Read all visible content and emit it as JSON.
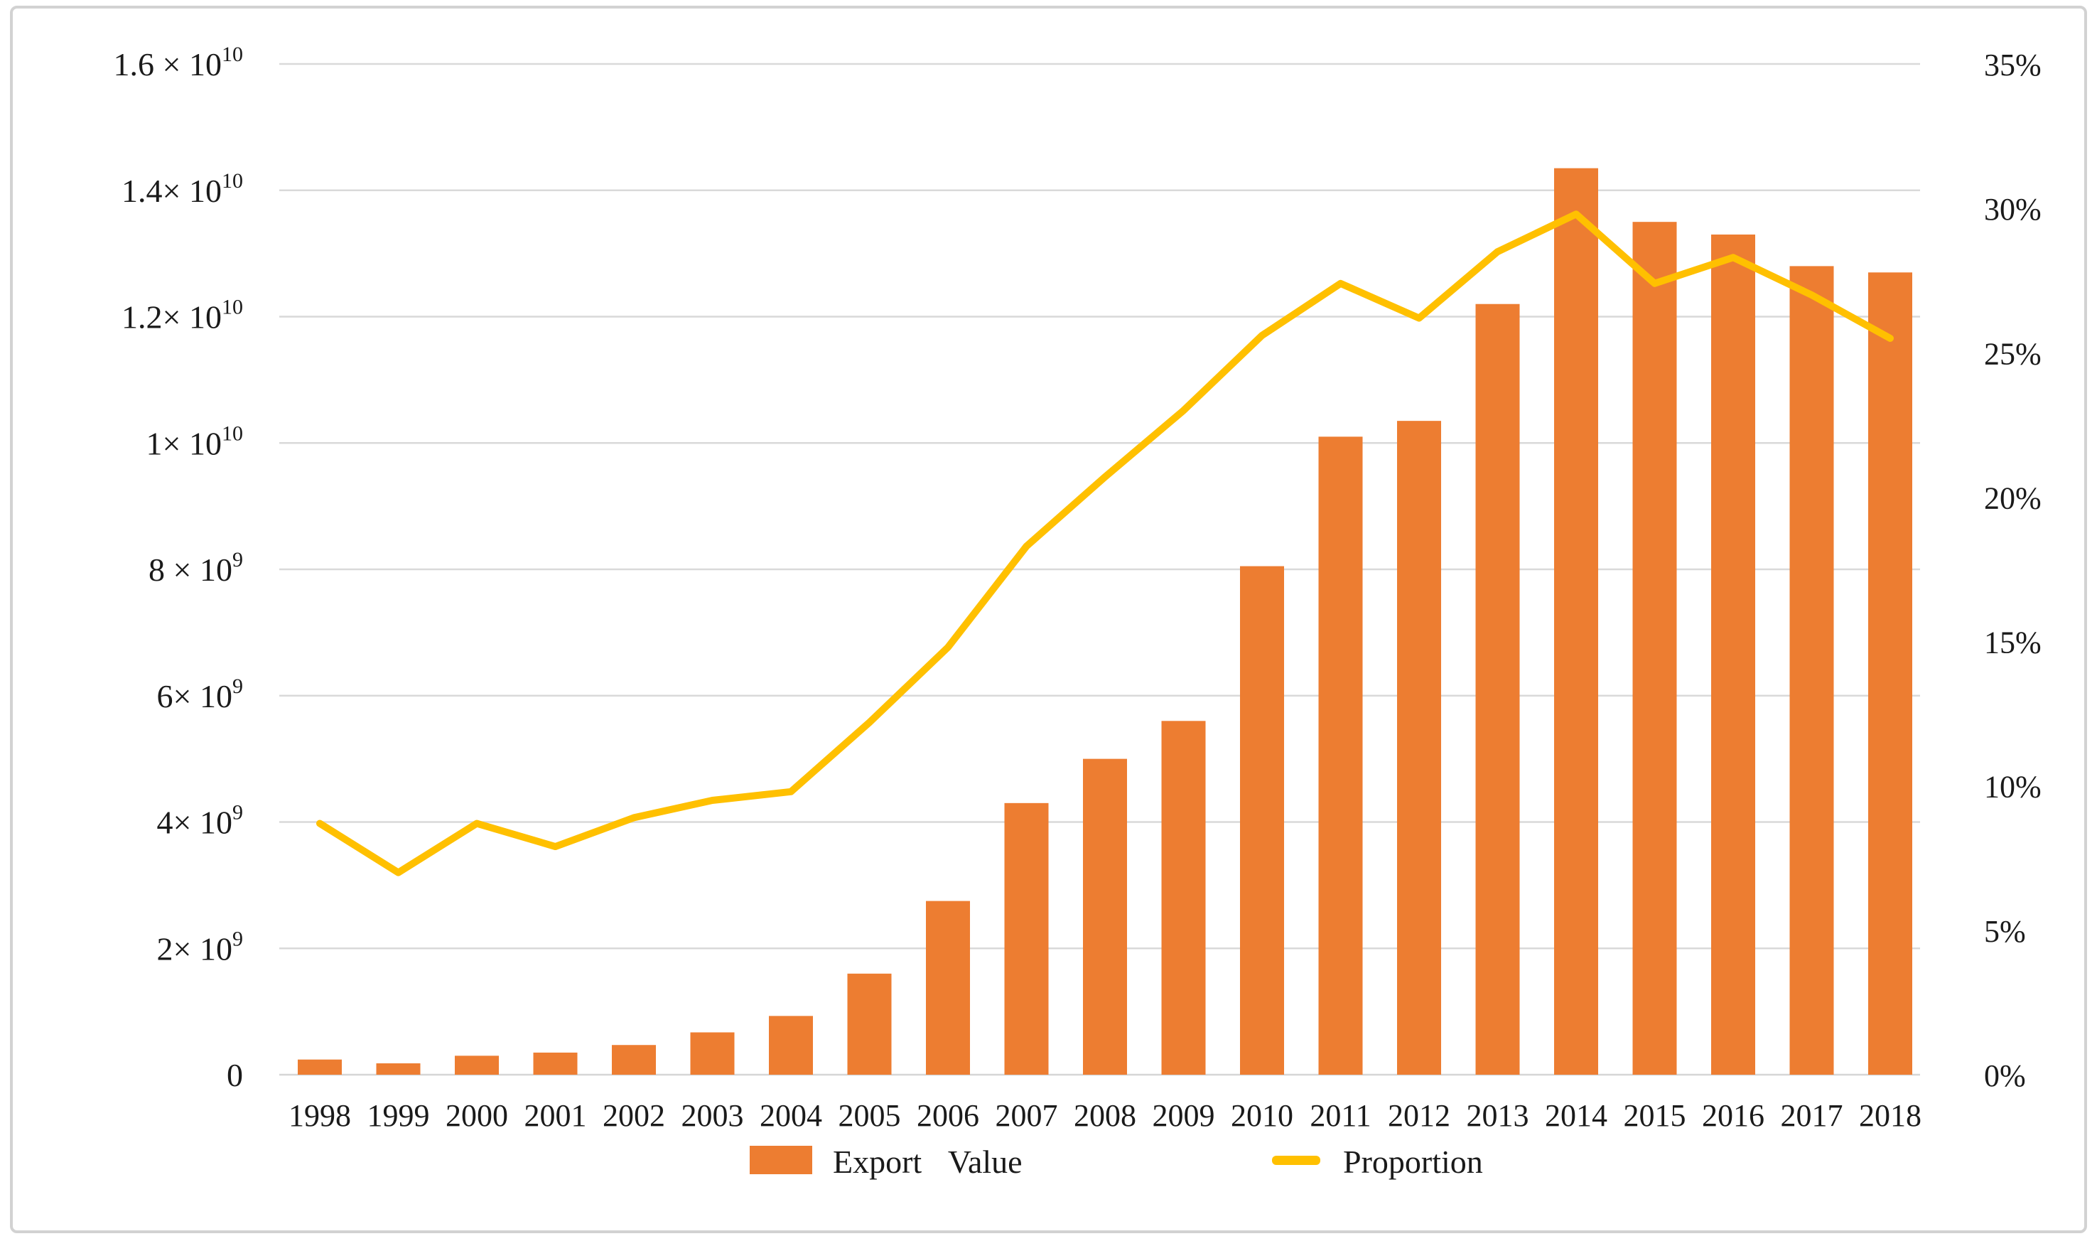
{
  "chart_data": {
    "type": "bar",
    "subtype": "combo-bar-line",
    "title": "",
    "xlabel": "",
    "ylabel_left": "",
    "ylabel_right": "",
    "grid": true,
    "legend_position": "bottom",
    "categories": [
      "1998",
      "1999",
      "2000",
      "2001",
      "2002",
      "2003",
      "2004",
      "2005",
      "2006",
      "2007",
      "2008",
      "2009",
      "2010",
      "2011",
      "2012",
      "2013",
      "2014",
      "2015",
      "2016",
      "2017",
      "2018"
    ],
    "series": [
      {
        "name": "Export Value",
        "type": "bar",
        "axis": "left",
        "color": "#ED7D31",
        "values": [
          240000000,
          180000000,
          300000000,
          350000000,
          470000000,
          670000000,
          930000000,
          1600000000,
          2750000000,
          4300000000,
          5000000000,
          5600000000,
          8050000000,
          10100000000,
          10350000000,
          12200000000,
          14350000000,
          13500000000,
          13300000000,
          12800000000,
          12700000000
        ]
      },
      {
        "name": "Proportion",
        "type": "line",
        "axis": "right",
        "color": "#FFC000",
        "values_pct": [
          8.7,
          7.0,
          8.7,
          7.9,
          8.9,
          9.5,
          9.8,
          12.2,
          14.8,
          18.3,
          20.7,
          23.0,
          25.6,
          27.4,
          26.2,
          28.5,
          29.8,
          27.4,
          28.3,
          27.0,
          25.5
        ]
      }
    ],
    "left_axis": {
      "min": 0,
      "max": 16000000000,
      "step": 2000000000,
      "tick_labels": [
        {
          "base": "0",
          "sup": ""
        },
        {
          "base": "2× 10",
          "sup": "9"
        },
        {
          "base": "4× 10",
          "sup": "9"
        },
        {
          "base": "6× 10",
          "sup": "9"
        },
        {
          "base": "8 × 10",
          "sup": "9"
        },
        {
          "base": "1× 10",
          "sup": "10"
        },
        {
          "base": "1.2× 10",
          "sup": "10"
        },
        {
          "base": "1.4× 10",
          "sup": "10"
        },
        {
          "base": "1.6 × 10",
          "sup": "10"
        }
      ]
    },
    "right_axis": {
      "min_pct": 0,
      "max_pct": 35,
      "step_pct": 5,
      "tick_labels": [
        "0%",
        "5%",
        "10%",
        "15%",
        "20%",
        "25%",
        "30%",
        "35%"
      ]
    }
  },
  "legend": {
    "items": [
      {
        "label": "Export Value",
        "swatch": "bar-swatch"
      },
      {
        "label": "Proportion",
        "swatch": "line-swatch"
      }
    ]
  },
  "colors": {
    "bar": "#ED7D31",
    "line": "#FFC000",
    "gridline": "#D9D9D9",
    "axis_line": "#D6D6D6",
    "text": "#1A1A1A",
    "frame_border": "#D2D2D2",
    "background": "#FFFFFF"
  }
}
